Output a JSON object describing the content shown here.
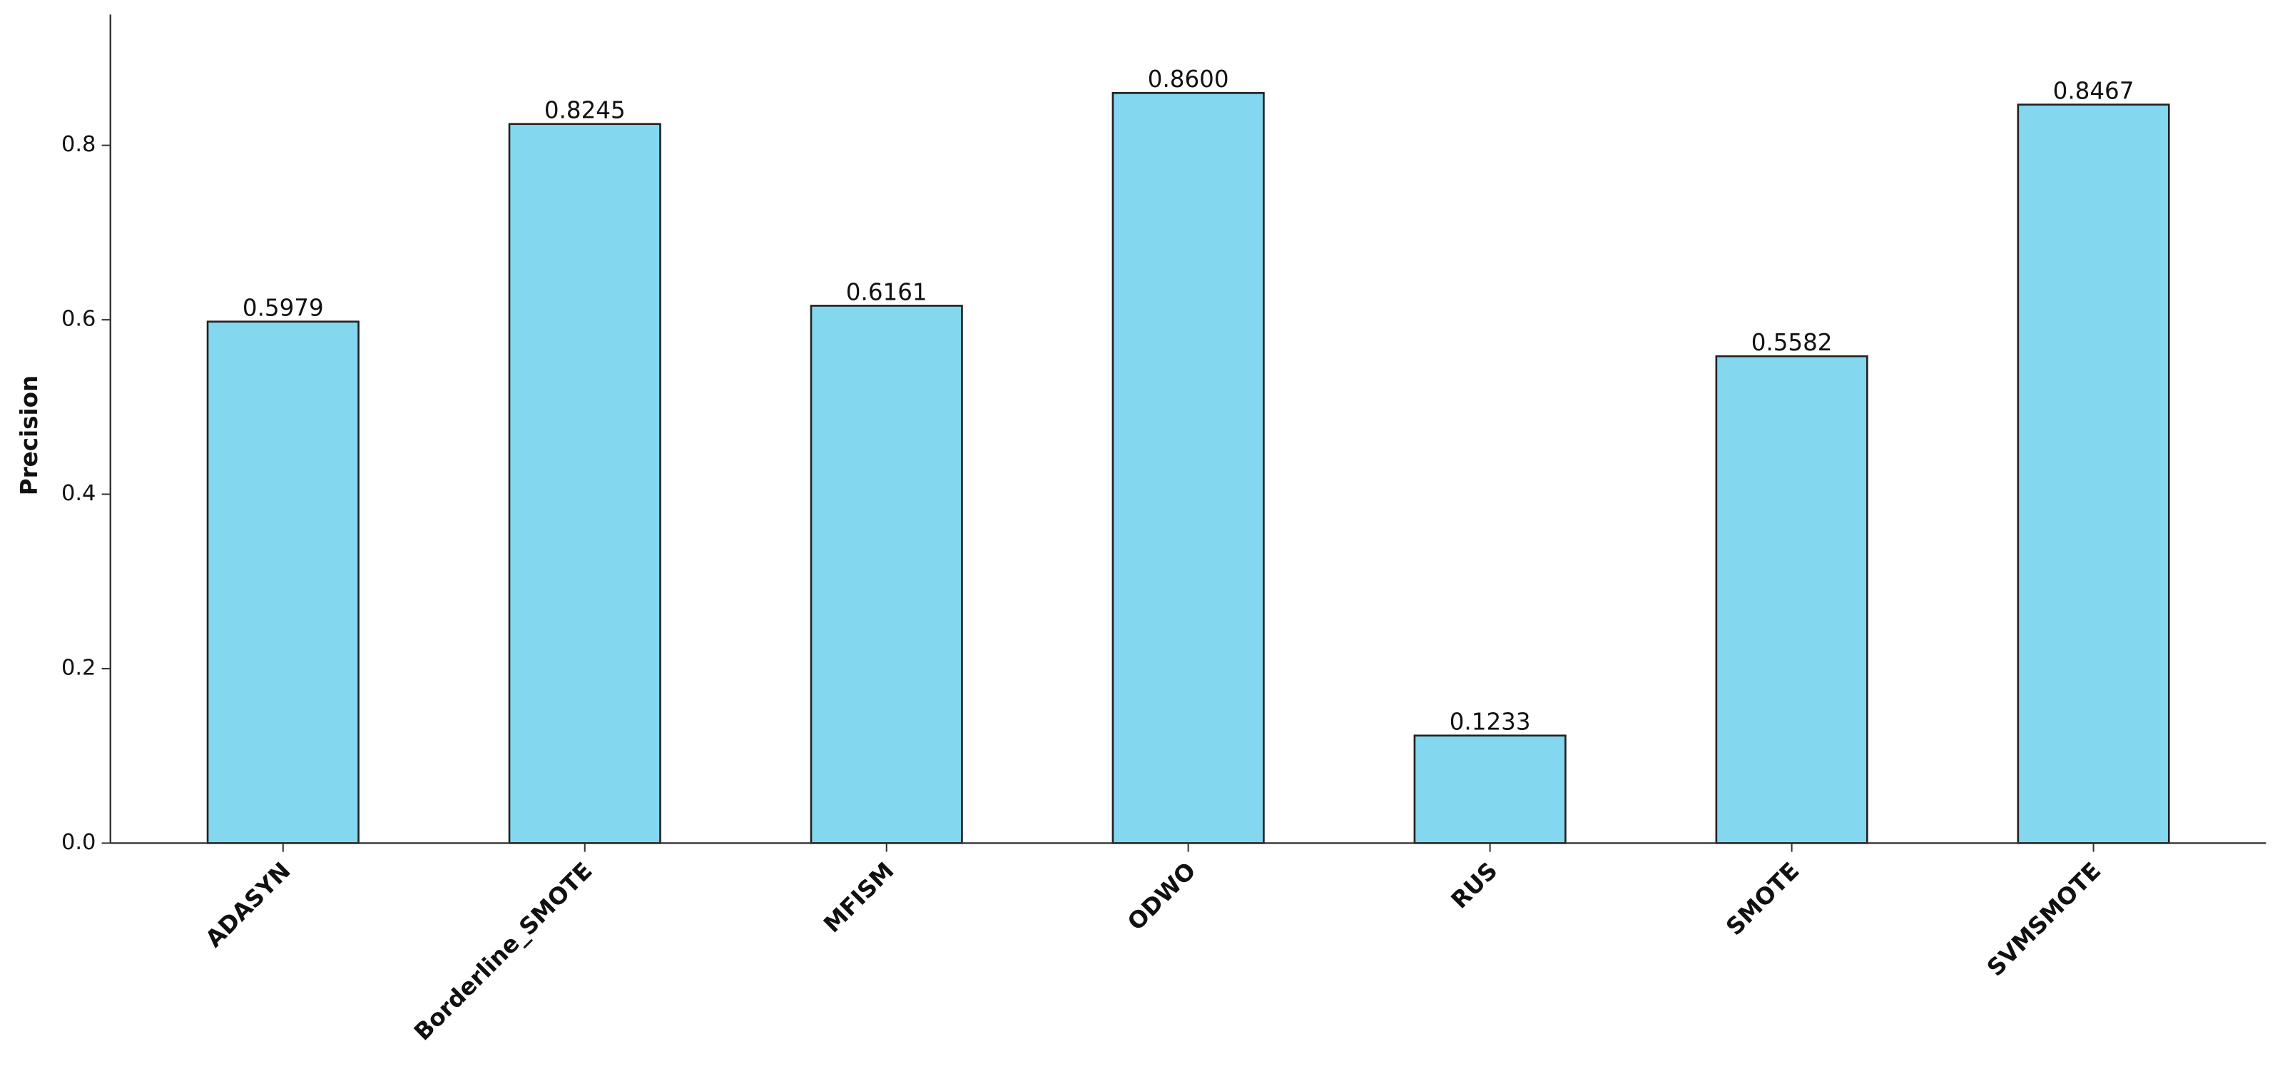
{
  "chart_data": {
    "type": "bar",
    "y_label": "Precision",
    "categories": [
      "ADASYN",
      "Borderline_SMOTE",
      "MFISM",
      "ODWO",
      "RUS",
      "SMOTE",
      "SVMSMOTE"
    ],
    "values": [
      0.5979,
      0.8245,
      0.6161,
      0.86,
      0.1233,
      0.5582,
      0.8467
    ],
    "value_labels": [
      "0.5979",
      "0.8245",
      "0.6161",
      "0.8600",
      "0.1233",
      "0.5582",
      "0.8467"
    ],
    "color": "#83d7ee",
    "ylim": [
      0,
      0.95
    ],
    "yticks": [
      {
        "value": 0,
        "label": "0.0"
      },
      0.2,
      0.4,
      0.6,
      0.8
    ],
    "grid": false
  }
}
